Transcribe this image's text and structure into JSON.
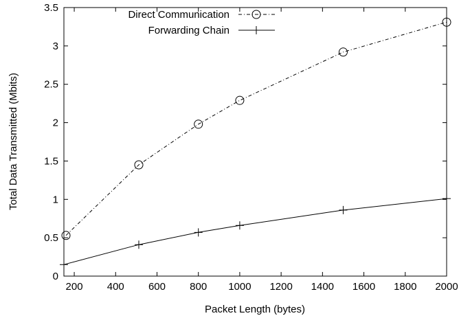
{
  "chart_data": {
    "type": "line",
    "title": "",
    "xlabel": "Packet Length (bytes)",
    "ylabel": "Total Data Transmitted (Mbits)",
    "xlim": [
      150,
      2000
    ],
    "ylim": [
      0,
      3.5
    ],
    "xticks": [
      200,
      400,
      600,
      800,
      1000,
      1200,
      1400,
      1600,
      1800,
      2000
    ],
    "yticks": [
      0,
      0.5,
      1,
      1.5,
      2,
      2.5,
      3,
      3.5
    ],
    "xtick_labels": [
      "200",
      "400",
      "600",
      "800",
      "1000",
      "1200",
      "1400",
      "1600",
      "1800",
      "2000"
    ],
    "ytick_labels": [
      "0",
      "0.5",
      "1",
      "1.5",
      "2",
      "2.5",
      "3",
      "3.5"
    ],
    "grid": false,
    "legend_position": "top-left",
    "series": [
      {
        "name": "Direct Communication",
        "marker": "circle",
        "line_style": "dash-dot",
        "x": [
          160,
          512,
          800,
          1000,
          1500,
          2000
        ],
        "y": [
          0.53,
          1.45,
          1.98,
          2.29,
          2.92,
          3.31
        ]
      },
      {
        "name": "Forwarding Chain",
        "marker": "plus",
        "line_style": "solid",
        "x": [
          150,
          512,
          800,
          1000,
          1500,
          2000
        ],
        "y": [
          0.15,
          0.41,
          0.57,
          0.66,
          0.86,
          1.01
        ]
      }
    ]
  }
}
